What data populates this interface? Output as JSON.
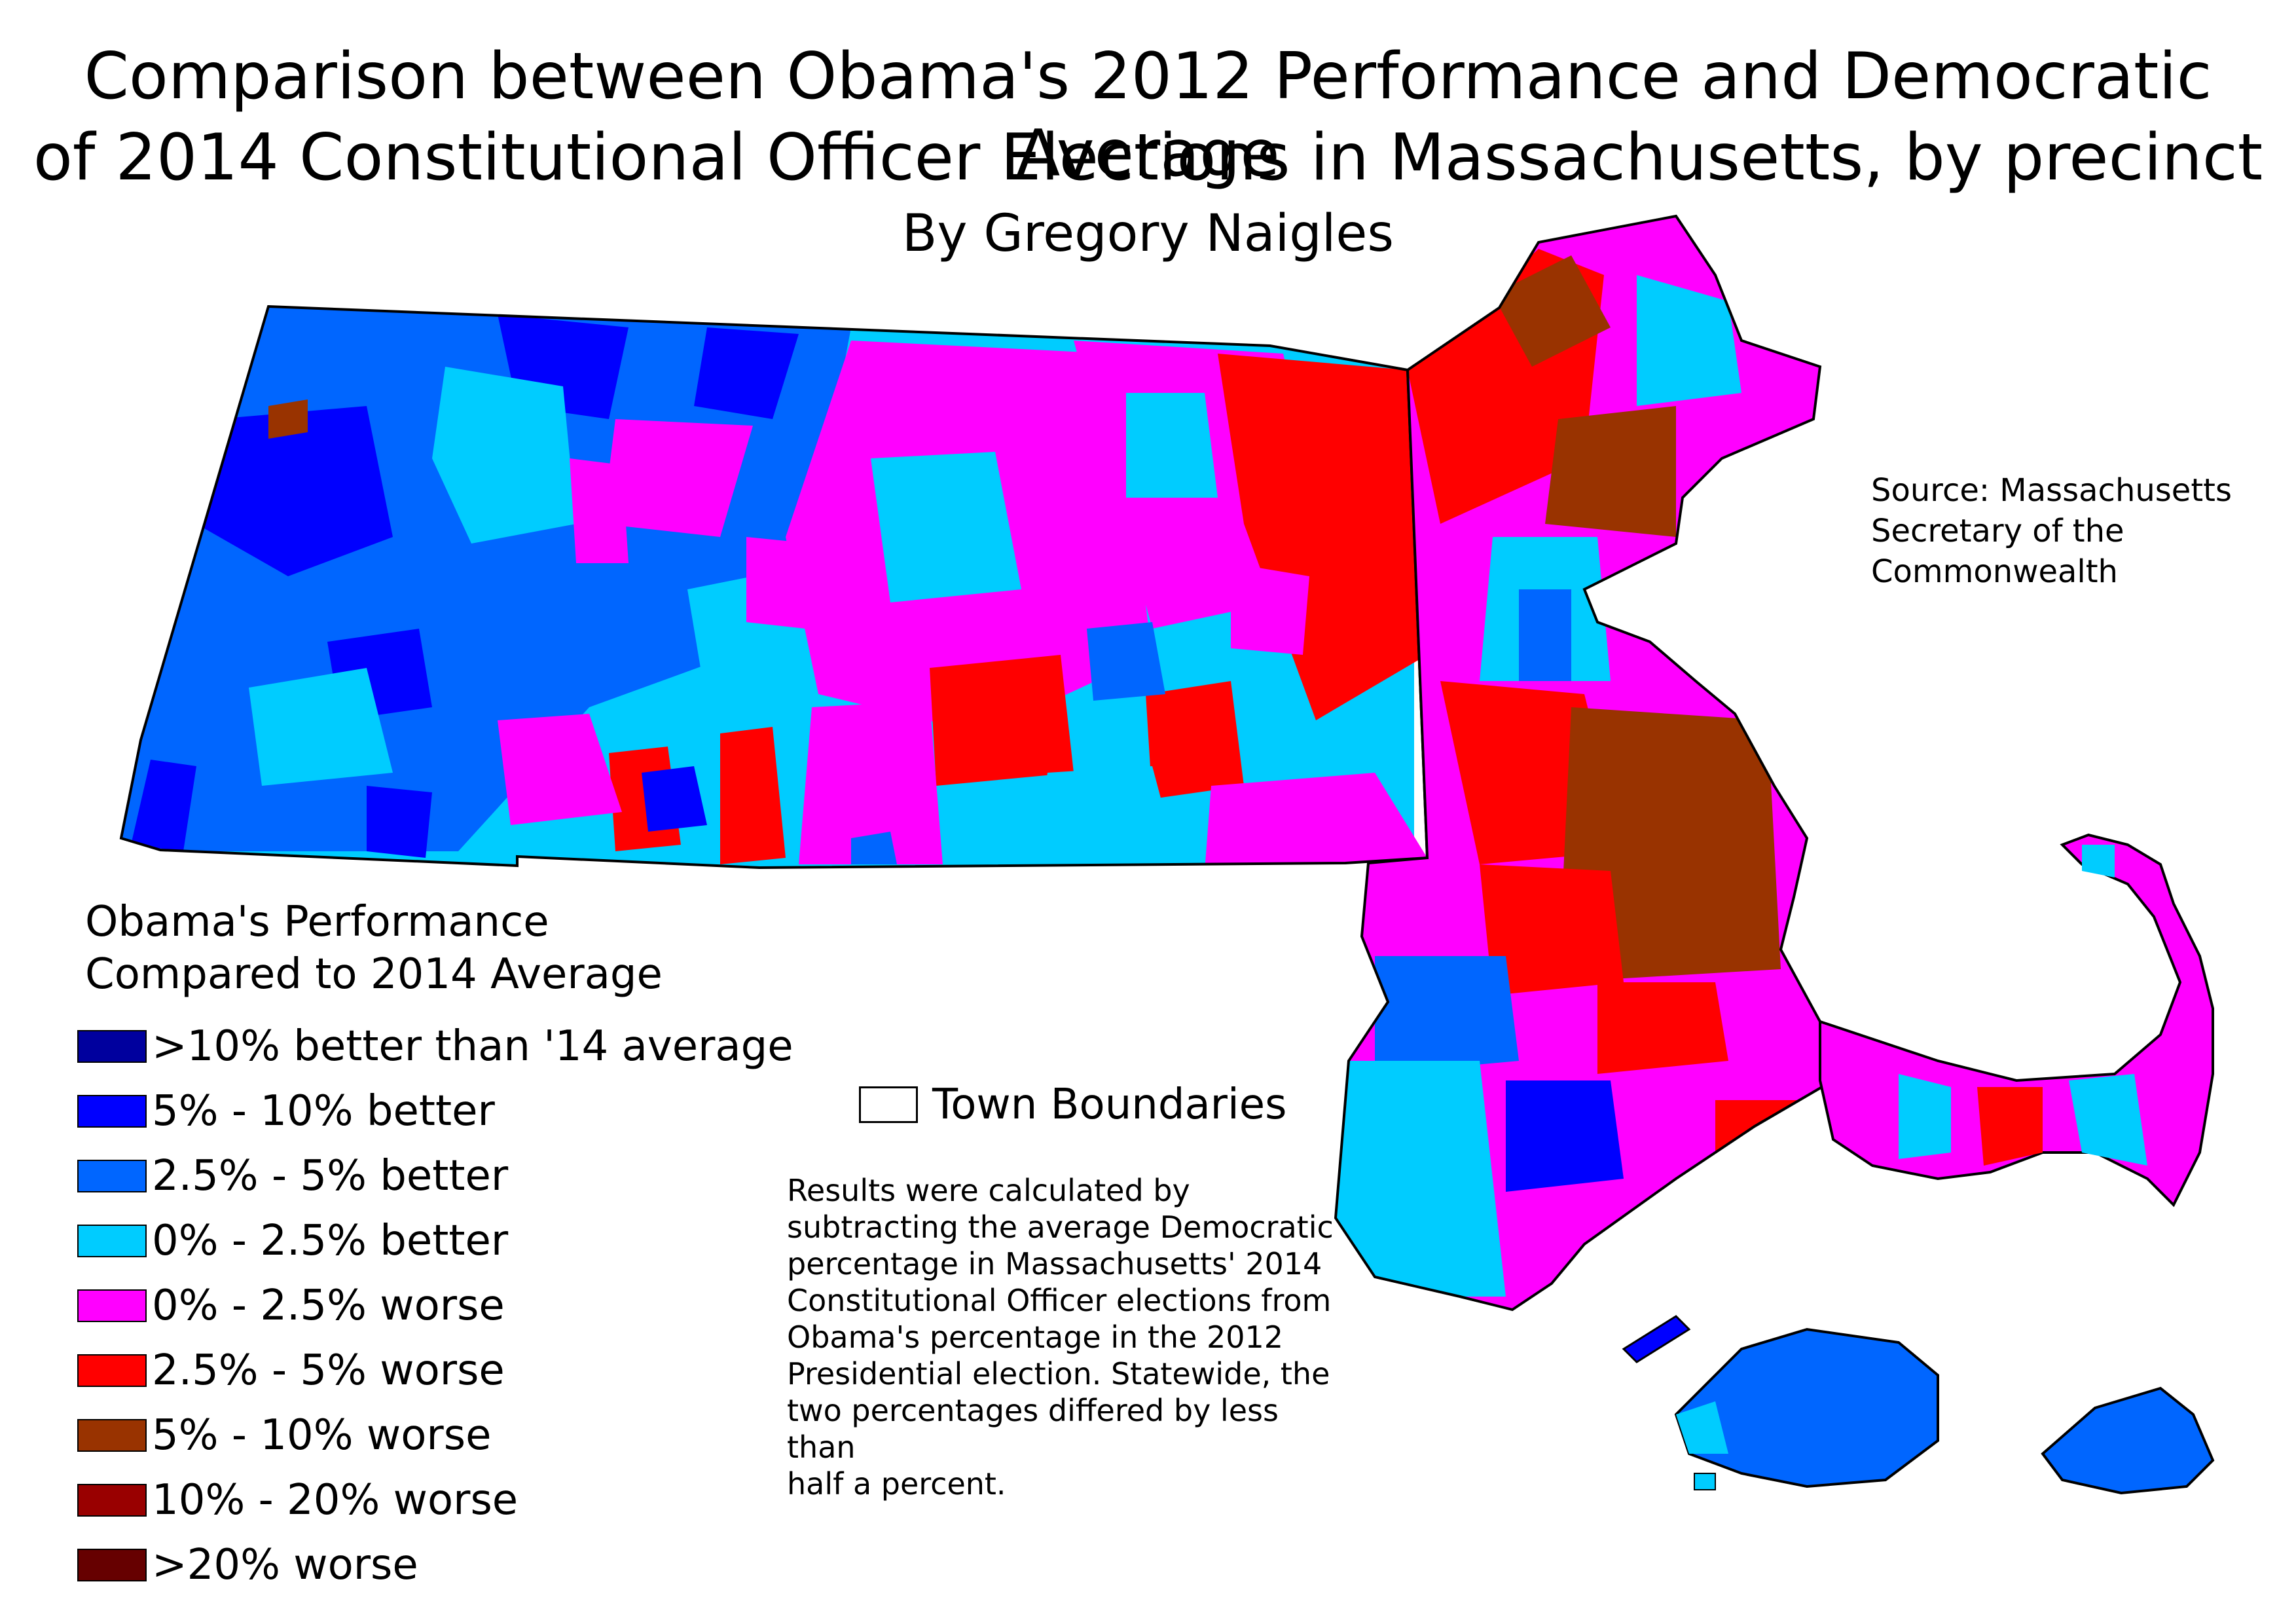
{
  "title_line1": "Comparison between Obama's 2012 Performance and Democratic Average",
  "title_line2": "of 2014 Constitutional Officer Elections in Massachusetts, by precinct",
  "byline": "By Gregory Naigles",
  "source_lines": [
    "Source: Massachusetts",
    "Secretary of the",
    "Commonwealth"
  ],
  "legend": {
    "title_lines": [
      "Obama's Performance",
      "Compared to 2014 Average"
    ],
    "items": [
      {
        "label": ">10% better than '14 average",
        "color": "#00009e"
      },
      {
        "label": "5% - 10% better",
        "color": "#0000ff"
      },
      {
        "label": "2.5% - 5% better",
        "color": "#0066ff"
      },
      {
        "label": "0% - 2.5% better",
        "color": "#00ccff"
      },
      {
        "label": "0% - 2.5% worse",
        "color": "#ff00ff"
      },
      {
        "label": "2.5% - 5% worse",
        "color": "#ff0000"
      },
      {
        "label": "5% - 10% worse",
        "color": "#993300"
      },
      {
        "label": "10% - 20% worse",
        "color": "#990000"
      },
      {
        "label": ">20% worse",
        "color": "#660000"
      }
    ]
  },
  "town_boundaries_label": "Town Boundaries",
  "note_lines": [
    "Results were calculated by",
    "subtracting the average Democratic",
    "percentage in Massachusetts' 2014",
    "Constitutional Officer elections from",
    "Obama's percentage in the 2012",
    "Presidential election. Statewide, the",
    "two percentages differed by less than",
    "half a percent."
  ]
}
